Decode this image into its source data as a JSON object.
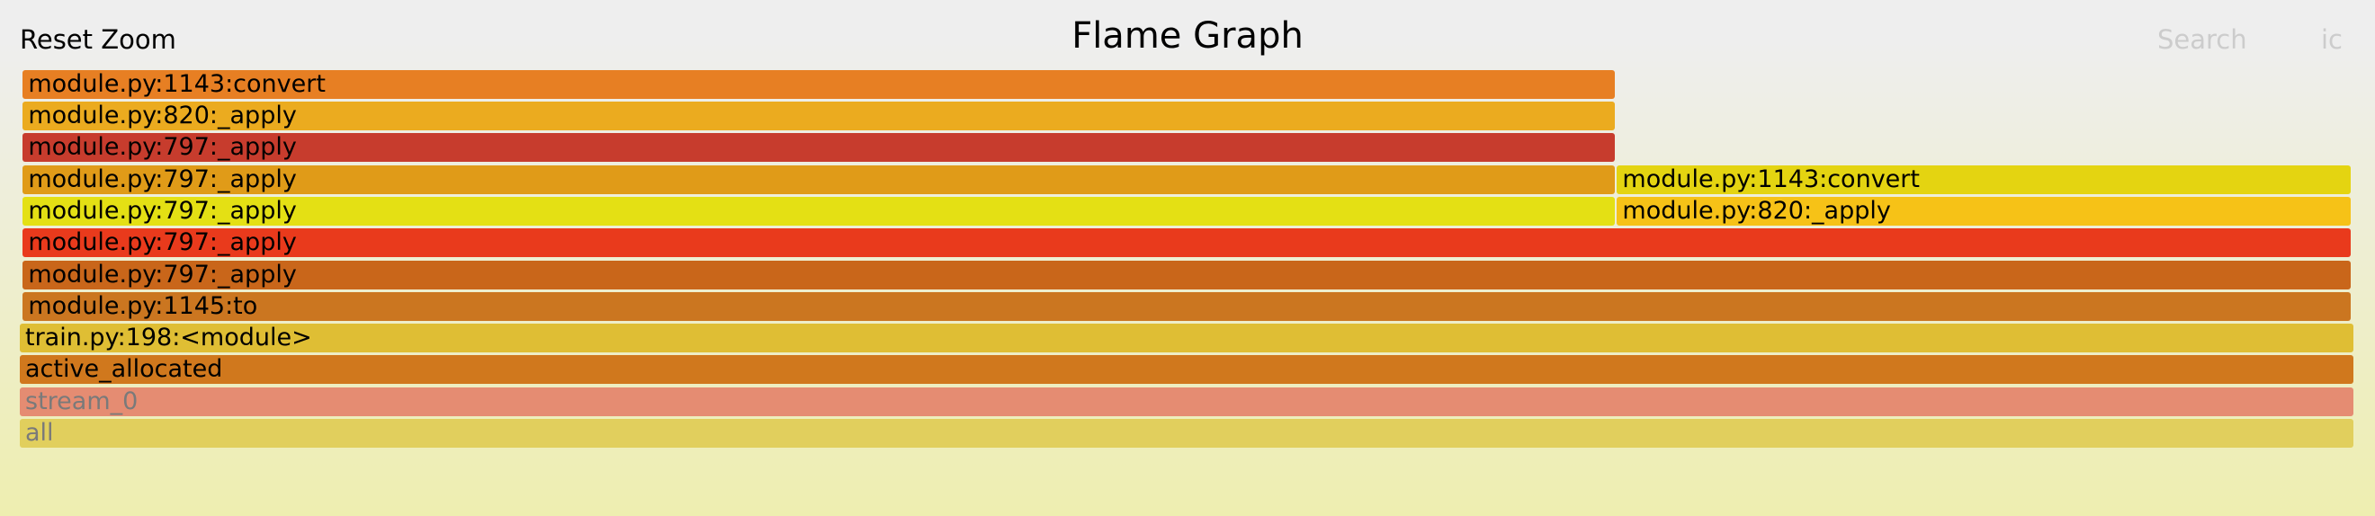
{
  "header": {
    "reset_zoom_label": "Reset Zoom",
    "title": "Flame Graph",
    "search_label": "Search",
    "ic_label": "ic"
  },
  "frames": [
    {
      "label": "module.py:1143:convert",
      "color": "#e77f23",
      "depth": 11,
      "start": 0.0013,
      "end": 0.6839
    },
    {
      "label": "module.py:820:_apply",
      "color": "#ebab1f",
      "depth": 10,
      "start": 0.0013,
      "end": 0.6839
    },
    {
      "label": "module.py:797:_apply",
      "color": "#c73c2d",
      "depth": 9,
      "start": 0.0013,
      "end": 0.6839
    },
    {
      "label": "module.py:797:_apply",
      "color": "#e09b18",
      "depth": 8,
      "start": 0.0013,
      "end": 0.6839
    },
    {
      "label": "module.py:1143:convert",
      "color": "#e4d411",
      "depth": 8,
      "start": 0.6839,
      "end": 0.9987
    },
    {
      "label": "module.py:797:_apply",
      "color": "#e4e014",
      "depth": 7,
      "start": 0.0013,
      "end": 0.6839
    },
    {
      "label": "module.py:820:_apply",
      "color": "#f6c217",
      "depth": 7,
      "start": 0.6839,
      "end": 0.9987
    },
    {
      "label": "module.py:797:_apply",
      "color": "#e93a1c",
      "depth": 6,
      "start": 0.0013,
      "end": 0.9987
    },
    {
      "label": "module.py:797:_apply",
      "color": "#c9661a",
      "depth": 5,
      "start": 0.0013,
      "end": 0.9987
    },
    {
      "label": "module.py:1145:to",
      "color": "#cb7620",
      "depth": 4,
      "start": 0.0013,
      "end": 0.9987
    },
    {
      "label": "train.py:198:<module>",
      "color": "#dfbe34",
      "depth": 3,
      "start": 0,
      "end": 1
    },
    {
      "label": "active_allocated",
      "color": "#d0781d",
      "depth": 2,
      "start": 0,
      "end": 1
    },
    {
      "label": "stream_0",
      "color": "#e58c72",
      "depth": 1,
      "start": 0,
      "end": 1,
      "muted": true
    },
    {
      "label": "all",
      "color": "#e1cf5d",
      "depth": 0,
      "start": 0,
      "end": 1,
      "muted": true
    }
  ]
}
